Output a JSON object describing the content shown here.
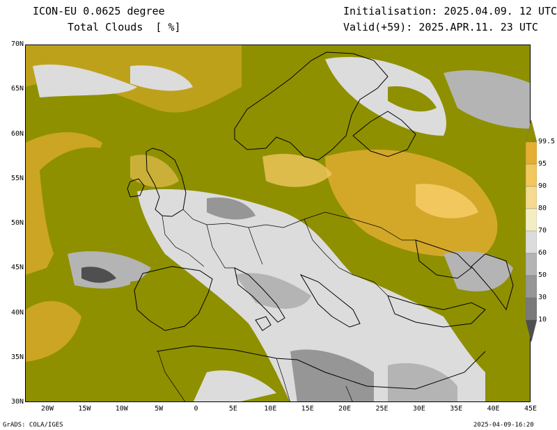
{
  "header": {
    "model": "ICON-EU 0.0625 degree",
    "variable": "Total Clouds  [ %]",
    "init": "Initialisation: 2025.04.09. 12 UTC",
    "valid": "Valid(+59): 2025.APR.11. 23 UTC"
  },
  "axes": {
    "lat_labels": [
      "70N",
      "65N",
      "60N",
      "55N",
      "50N",
      "45N",
      "40N",
      "35N",
      "30N"
    ],
    "lon_labels": [
      "20W",
      "15W",
      "10W",
      "5W",
      "0",
      "5E",
      "10E",
      "15E",
      "20E",
      "25E",
      "30E",
      "35E",
      "40E",
      "45E"
    ],
    "lat_range": [
      30,
      70
    ],
    "lon_range": [
      -23,
      45
    ]
  },
  "colorbar": {
    "levels": [
      "99.5",
      "95",
      "90",
      "80",
      "70",
      "60",
      "50",
      "30",
      "10"
    ],
    "colors": [
      "#8e9000",
      "#e5ae32",
      "#f2c75e",
      "#f5da8f",
      "#f4edc4",
      "#dcdcdc",
      "#b4b4b4",
      "#969696",
      "#7a7a7a",
      "#4f4f4f"
    ]
  },
  "footer": {
    "left": "GrADS: COLA/IGES",
    "right": "2025-04-09-16:20"
  }
}
